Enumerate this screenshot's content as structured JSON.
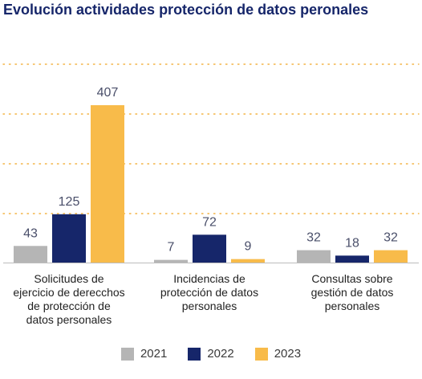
{
  "chart_data": {
    "type": "bar",
    "title": "Evolución actividades protección de datos peronales",
    "categories": [
      [
        "Solicitudes de",
        "ejercicio de derecchos",
        "de protección de",
        "datos personales"
      ],
      [
        "Incidencias de",
        "protección de datos",
        "personales"
      ],
      [
        "Consultas sobre",
        "gestión de datos",
        "personales"
      ]
    ],
    "series": [
      {
        "name": "2021",
        "color": "#b5b5b5",
        "values": [
          43,
          7,
          32
        ]
      },
      {
        "name": "2022",
        "color": "#16266a",
        "values": [
          125,
          72,
          18
        ]
      },
      {
        "name": "2023",
        "color": "#f8bb4a",
        "values": [
          407,
          9,
          32
        ]
      }
    ],
    "ylim": [
      0,
      480
    ],
    "grid": true,
    "grid_style": "dotted",
    "legend_position": "bottom",
    "colors": {
      "title": "#16266a",
      "grid": "#f3b343",
      "value_label": "#4a4f6a",
      "category_label": "#222222"
    }
  }
}
